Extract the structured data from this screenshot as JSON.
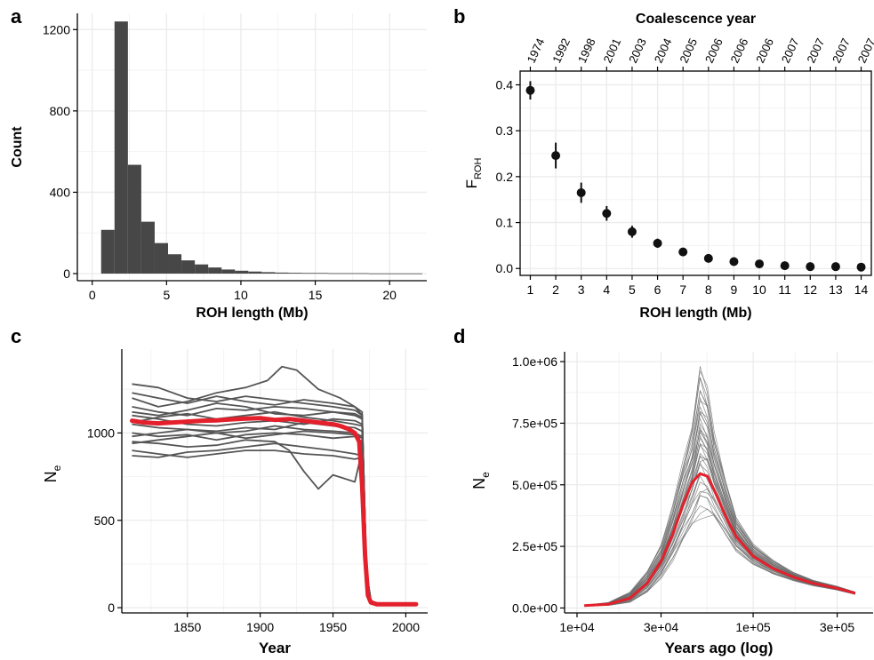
{
  "colors": {
    "bar": "#474747",
    "point": "#111111",
    "trace": "#555555",
    "mean": "#e3202b",
    "grid": "#ebebeb",
    "axis": "#000000"
  },
  "panels": {
    "a": "a",
    "b": "b",
    "c": "c",
    "d": "d"
  },
  "chart_data": [
    {
      "panel": "a",
      "type": "bar",
      "xlabel": "ROH length (Mb)",
      "ylabel": "Count",
      "xlim": [
        -1,
        22.5
      ],
      "ylim": [
        -35,
        1280
      ],
      "xticks": [
        0,
        5,
        10,
        15,
        20
      ],
      "yticks": [
        0,
        400,
        800,
        1200
      ],
      "grid": true,
      "bin_width": 0.9,
      "bin_start": 0.6,
      "values": [
        215,
        1240,
        535,
        255,
        150,
        95,
        65,
        45,
        30,
        20,
        14,
        10,
        7,
        5,
        4,
        3,
        3,
        2,
        2,
        2,
        1,
        1,
        1,
        1
      ]
    },
    {
      "panel": "b",
      "type": "scatter",
      "title": "Coalescence year",
      "xlabel": "ROH length (Mb)",
      "ylabel_main": "F",
      "ylabel_sub": "ROH",
      "x": [
        1,
        2,
        3,
        4,
        5,
        6,
        7,
        8,
        9,
        10,
        11,
        12,
        13,
        14
      ],
      "y": [
        0.388,
        0.246,
        0.165,
        0.12,
        0.08,
        0.055,
        0.036,
        0.022,
        0.015,
        0.01,
        0.006,
        0.004,
        0.004,
        0.003
      ],
      "err": [
        0.02,
        0.028,
        0.022,
        0.016,
        0.013,
        0.01,
        0.009,
        0.006,
        0.005,
        0.004,
        0.003,
        0.003,
        0.003,
        0.003
      ],
      "top_labels": [
        "1974",
        "1992",
        "1998",
        "2001",
        "2003",
        "2004",
        "2005",
        "2006",
        "2006",
        "2006",
        "2007",
        "2007",
        "2007",
        "2007"
      ],
      "xlim": [
        0.6,
        14.4
      ],
      "ylim": [
        -0.015,
        0.43
      ],
      "yticks": [
        0.0,
        0.1,
        0.2,
        0.3,
        0.4
      ],
      "ytick_labels": [
        "0.0",
        "0.1",
        "0.2",
        "0.3",
        "0.4"
      ],
      "grid": true
    },
    {
      "panel": "c",
      "type": "line",
      "xlabel": "Year",
      "ylabel_main": "N",
      "ylabel_sub": "e",
      "xlim": [
        1805,
        2015
      ],
      "ylim": [
        -30,
        1480
      ],
      "xticks": [
        1850,
        1900,
        1950,
        2000
      ],
      "yticks": [
        0,
        500,
        1000
      ],
      "grid": true,
      "mean_series": {
        "x": [
          1812,
          1820,
          1830,
          1840,
          1850,
          1860,
          1870,
          1880,
          1890,
          1900,
          1910,
          1920,
          1930,
          1940,
          1950,
          1955,
          1960,
          1965,
          1968,
          1970,
          1972,
          1974,
          1976,
          1980,
          1990,
          2000,
          2007
        ],
        "y": [
          1070,
          1060,
          1055,
          1060,
          1065,
          1070,
          1072,
          1078,
          1082,
          1085,
          1075,
          1080,
          1070,
          1060,
          1050,
          1040,
          1025,
          1000,
          950,
          700,
          300,
          70,
          30,
          20,
          20,
          20,
          20
        ]
      },
      "traces": [
        {
          "x": [
            1812,
            1830,
            1850,
            1870,
            1890,
            1905,
            1915,
            1925,
            1940,
            1955,
            1965,
            1970
          ],
          "y": [
            1200,
            1150,
            1180,
            1230,
            1260,
            1300,
            1380,
            1360,
            1250,
            1200,
            1150,
            1100
          ]
        },
        {
          "x": [
            1812,
            1830,
            1850,
            1870,
            1890,
            1910,
            1930,
            1950,
            1965,
            1970
          ],
          "y": [
            1280,
            1260,
            1200,
            1180,
            1210,
            1190,
            1170,
            1150,
            1130,
            1100
          ]
        },
        {
          "x": [
            1812,
            1830,
            1850,
            1870,
            1890,
            1910,
            1930,
            1950,
            1965,
            1970
          ],
          "y": [
            1150,
            1120,
            1100,
            1140,
            1130,
            1150,
            1140,
            1120,
            1100,
            1080
          ]
        },
        {
          "x": [
            1812,
            1830,
            1850,
            1870,
            1890,
            1910,
            1930,
            1950,
            1965,
            1970
          ],
          "y": [
            1100,
            1080,
            1050,
            1040,
            1060,
            1070,
            1050,
            1080,
            1070,
            1050
          ]
        },
        {
          "x": [
            1812,
            1830,
            1850,
            1870,
            1890,
            1910,
            1930,
            1950,
            1965,
            1970
          ],
          "y": [
            1050,
            1030,
            1020,
            1000,
            1010,
            1040,
            1020,
            1010,
            1000,
            980
          ]
        },
        {
          "x": [
            1812,
            1830,
            1850,
            1870,
            1890,
            1910,
            1930,
            1950,
            1965,
            1970
          ],
          "y": [
            1000,
            980,
            990,
            960,
            990,
            1000,
            990,
            970,
            980,
            950
          ]
        },
        {
          "x": [
            1812,
            1830,
            1850,
            1870,
            1890,
            1910,
            1920,
            1930,
            1940,
            1950,
            1965,
            1970
          ],
          "y": [
            950,
            940,
            920,
            930,
            960,
            950,
            900,
            780,
            680,
            760,
            720,
            900
          ]
        },
        {
          "x": [
            1812,
            1830,
            1850,
            1870,
            1890,
            1910,
            1930,
            1950,
            1965,
            1970
          ],
          "y": [
            900,
            880,
            860,
            880,
            900,
            900,
            880,
            870,
            850,
            860
          ]
        },
        {
          "x": [
            1812,
            1830,
            1850,
            1870,
            1890,
            1910,
            1930,
            1950,
            1965,
            1970
          ],
          "y": [
            870,
            860,
            890,
            900,
            920,
            940,
            920,
            900,
            880,
            870
          ]
        },
        {
          "x": [
            1812,
            1830,
            1850,
            1870,
            1890,
            1910,
            1930,
            1950,
            1965,
            1970
          ],
          "y": [
            1230,
            1200,
            1170,
            1210,
            1180,
            1160,
            1190,
            1170,
            1150,
            1120
          ]
        },
        {
          "x": [
            1812,
            1830,
            1850,
            1870,
            1890,
            1910,
            1930,
            1950,
            1965,
            1970
          ],
          "y": [
            1120,
            1100,
            1130,
            1170,
            1150,
            1110,
            1100,
            1120,
            1110,
            1090
          ]
        },
        {
          "x": [
            1812,
            1830,
            1850,
            1870,
            1890,
            1910,
            1930,
            1950,
            1965,
            1970
          ],
          "y": [
            980,
            1000,
            1020,
            1010,
            1030,
            1020,
            1060,
            1040,
            1030,
            1010
          ]
        },
        {
          "x": [
            1812,
            1830,
            1850,
            1870,
            1890,
            1910,
            1930,
            1950,
            1965,
            1970
          ],
          "y": [
            1060,
            1090,
            1110,
            1080,
            1100,
            1120,
            1090,
            1070,
            1050,
            1040
          ]
        },
        {
          "x": [
            1812,
            1830,
            1850,
            1870,
            1890,
            1910,
            1930,
            1950,
            1965,
            1970
          ],
          "y": [
            940,
            960,
            980,
            1000,
            970,
            990,
            1010,
            1000,
            990,
            970
          ]
        }
      ]
    },
    {
      "panel": "d",
      "type": "line",
      "xlabel": "Years ago (log)",
      "ylabel_main": "N",
      "ylabel_sub": "e",
      "xscale": "log",
      "xlim": [
        8500,
        480000
      ],
      "ylim": [
        -20000,
        1040000
      ],
      "xticks": [
        10000,
        30000,
        100000,
        300000
      ],
      "xtick_labels": [
        "1e+04",
        "3e+04",
        "1e+05",
        "3e+05"
      ],
      "yticks": [
        0,
        250000,
        500000,
        750000,
        1000000
      ],
      "ytick_labels": [
        "0.0e+00",
        "2.5e+05",
        "5.0e+05",
        "7.5e+05",
        "1.0e+06"
      ],
      "grid": true,
      "mean_series": {
        "x": [
          11000,
          15000,
          20000,
          25000,
          30000,
          35000,
          40000,
          45000,
          50000,
          55000,
          60000,
          70000,
          80000,
          100000,
          130000,
          170000,
          220000,
          300000,
          380000
        ],
        "y": [
          10000,
          15000,
          40000,
          100000,
          190000,
          300000,
          420000,
          510000,
          545000,
          535000,
          480000,
          370000,
          290000,
          210000,
          160000,
          125000,
          100000,
          80000,
          60000
        ]
      },
      "trace_band": {
        "x": [
          11000,
          15000,
          20000,
          25000,
          30000,
          35000,
          40000,
          45000,
          50000,
          55000,
          60000,
          70000,
          80000,
          100000,
          130000,
          170000,
          220000,
          300000,
          380000
        ],
        "low": [
          9000,
          10000,
          22000,
          60000,
          120000,
          190000,
          260000,
          320000,
          360000,
          370000,
          350000,
          290000,
          230000,
          175000,
          135000,
          110000,
          90000,
          72000,
          55000
        ],
        "high": [
          11000,
          22000,
          65000,
          150000,
          260000,
          420000,
          600000,
          750000,
          990000,
          900000,
          720000,
          520000,
          370000,
          260000,
          195000,
          145000,
          112000,
          88000,
          65000
        ]
      },
      "trace_count": 40
    }
  ]
}
